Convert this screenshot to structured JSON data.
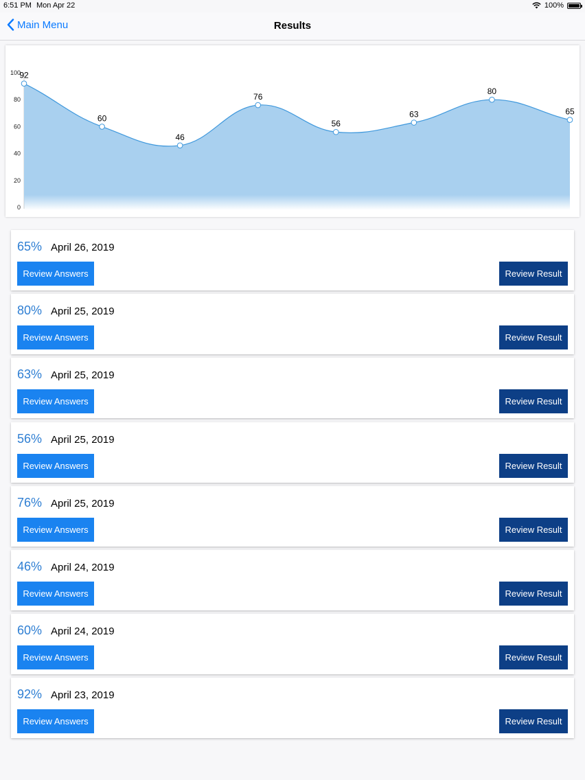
{
  "status_bar": {
    "time": "6:51 PM",
    "date": "Mon Apr 22",
    "battery": "100%",
    "battery_level": 1.0
  },
  "nav": {
    "back_label": "Main Menu",
    "title": "Results"
  },
  "colors": {
    "accent": "#0a7aff",
    "score_text": "#2f7fd3",
    "review_answers_bg": "#1a83f0",
    "review_result_bg": "#0d3f86",
    "area_fill": "#a9d0ef",
    "line": "#3f98dc"
  },
  "chart_data": {
    "type": "area",
    "x": [
      1,
      2,
      3,
      4,
      5,
      6,
      7,
      8
    ],
    "values": [
      92,
      60,
      46,
      76,
      56,
      63,
      80,
      65
    ],
    "ylim": [
      0,
      100
    ],
    "yticks": [
      "0",
      "20",
      "40",
      "60",
      "80",
      "100"
    ],
    "grid": false
  },
  "results": [
    {
      "score": "65%",
      "date": "April 26, 2019",
      "answers_label": "Review Answers",
      "result_label": "Review Result"
    },
    {
      "score": "80%",
      "date": "April 25, 2019",
      "answers_label": "Review Answers",
      "result_label": "Review Result"
    },
    {
      "score": "63%",
      "date": "April 25, 2019",
      "answers_label": "Review Answers",
      "result_label": "Review Result"
    },
    {
      "score": "56%",
      "date": "April 25, 2019",
      "answers_label": "Review Answers",
      "result_label": "Review Result"
    },
    {
      "score": "76%",
      "date": "April 25, 2019",
      "answers_label": "Review Answers",
      "result_label": "Review Result"
    },
    {
      "score": "46%",
      "date": "April 24, 2019",
      "answers_label": "Review Answers",
      "result_label": "Review Result"
    },
    {
      "score": "60%",
      "date": "April 24, 2019",
      "answers_label": "Review Answers",
      "result_label": "Review Result"
    },
    {
      "score": "92%",
      "date": "April 23, 2019",
      "answers_label": "Review Answers",
      "result_label": "Review Result"
    }
  ]
}
